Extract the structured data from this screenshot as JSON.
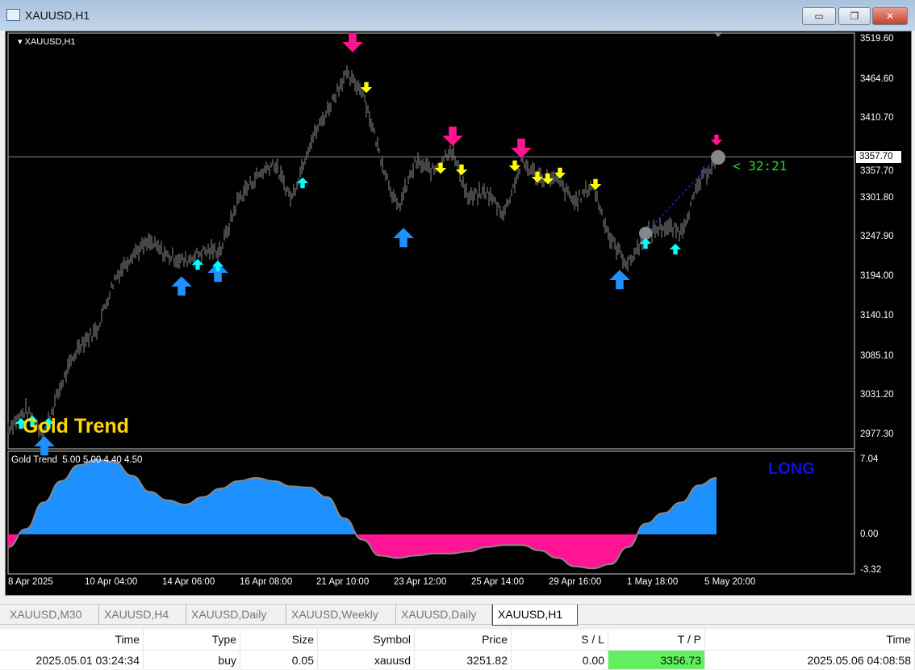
{
  "window": {
    "title": "XAUUSD,H1",
    "buttons": {
      "minimize": "▭",
      "maximize": "❐",
      "close": "✕"
    }
  },
  "chart": {
    "symbol_label": "XAUUSD,H1",
    "watermark": "Gold Trend",
    "signal": "LONG",
    "timer": "< 32:21",
    "current_price": "3357.70",
    "indicator_label": "Gold Trend  5.00 5.00 4.40 4.50",
    "colors": {
      "background": "#000000",
      "bars": "#8c8c8c",
      "buy_big": "#1e90ff",
      "buy_small": "#00ffff",
      "sell_big": "#ff1493",
      "sell_small": "#ffff00",
      "osc_pos": "#1e90ff",
      "osc_neg": "#ff1493",
      "timer": "#22dd22",
      "long": "#1010e0"
    }
  },
  "chart_data": {
    "type": "line",
    "price_axis": {
      "ticks": [
        "3519.60",
        "3464.60",
        "3410.70",
        "3357.70",
        "3301.80",
        "3247.90",
        "3194.00",
        "3140.10",
        "3085.10",
        "3031.20",
        "2977.30"
      ],
      "range": [
        2977.3,
        3519.6
      ]
    },
    "time_axis": {
      "ticks": [
        "8 Apr 2025",
        "10 Apr 04:00",
        "14 Apr 06:00",
        "16 Apr 08:00",
        "21 Apr 10:00",
        "23 Apr 12:00",
        "25 Apr 14:00",
        "29 Apr 16:00",
        "1 May 18:00",
        "5 May 20:00"
      ]
    },
    "price_close_approx": [
      2986,
      3010,
      2978,
      3045,
      3100,
      3120,
      3190,
      3225,
      3240,
      3222,
      3215,
      3228,
      3230,
      3300,
      3330,
      3350,
      3300,
      3375,
      3420,
      3470,
      3450,
      3360,
      3285,
      3350,
      3338,
      3370,
      3300,
      3310,
      3280,
      3350,
      3330,
      3325,
      3295,
      3320,
      3245,
      3210,
      3252,
      3262,
      3255,
      3320,
      3357
    ],
    "oscillator": {
      "ticks": [
        "7.04",
        "0.00",
        "-3.32"
      ],
      "range": [
        -3.32,
        7.04
      ],
      "values": [
        -1.2,
        0.5,
        3,
        5,
        6.5,
        7,
        6.8,
        5.5,
        4,
        3.2,
        2.8,
        3.5,
        4.3,
        5,
        5.3,
        5,
        4.5,
        4.4,
        3.5,
        1.5,
        -0.5,
        -2,
        -2.2,
        -2,
        -1.8,
        -1.8,
        -1.6,
        -1.2,
        -1,
        -1,
        -1.5,
        -2.2,
        -3,
        -3.2,
        -2.8,
        -1.2,
        1,
        2,
        3,
        4.6,
        5.3
      ]
    }
  },
  "tabs": [
    {
      "label": "XAUUSD,M30"
    },
    {
      "label": "XAUUSD,H4"
    },
    {
      "label": "XAUUSD,Daily"
    },
    {
      "label": "XAUUSD,Weekly"
    },
    {
      "label": "XAUUSD,Daily"
    },
    {
      "label": "XAUUSD,H1",
      "active": true
    }
  ],
  "trades": {
    "headers": [
      "Time",
      "Type",
      "Size",
      "Symbol",
      "Price",
      "S / L",
      "T / P",
      "Time"
    ],
    "rows": [
      [
        "2025.05.01 03:24:34",
        "buy",
        "0.05",
        "xauusd",
        "3251.82",
        "0.00",
        "3356.73",
        "2025.05.06 04:08:58"
      ]
    ]
  }
}
